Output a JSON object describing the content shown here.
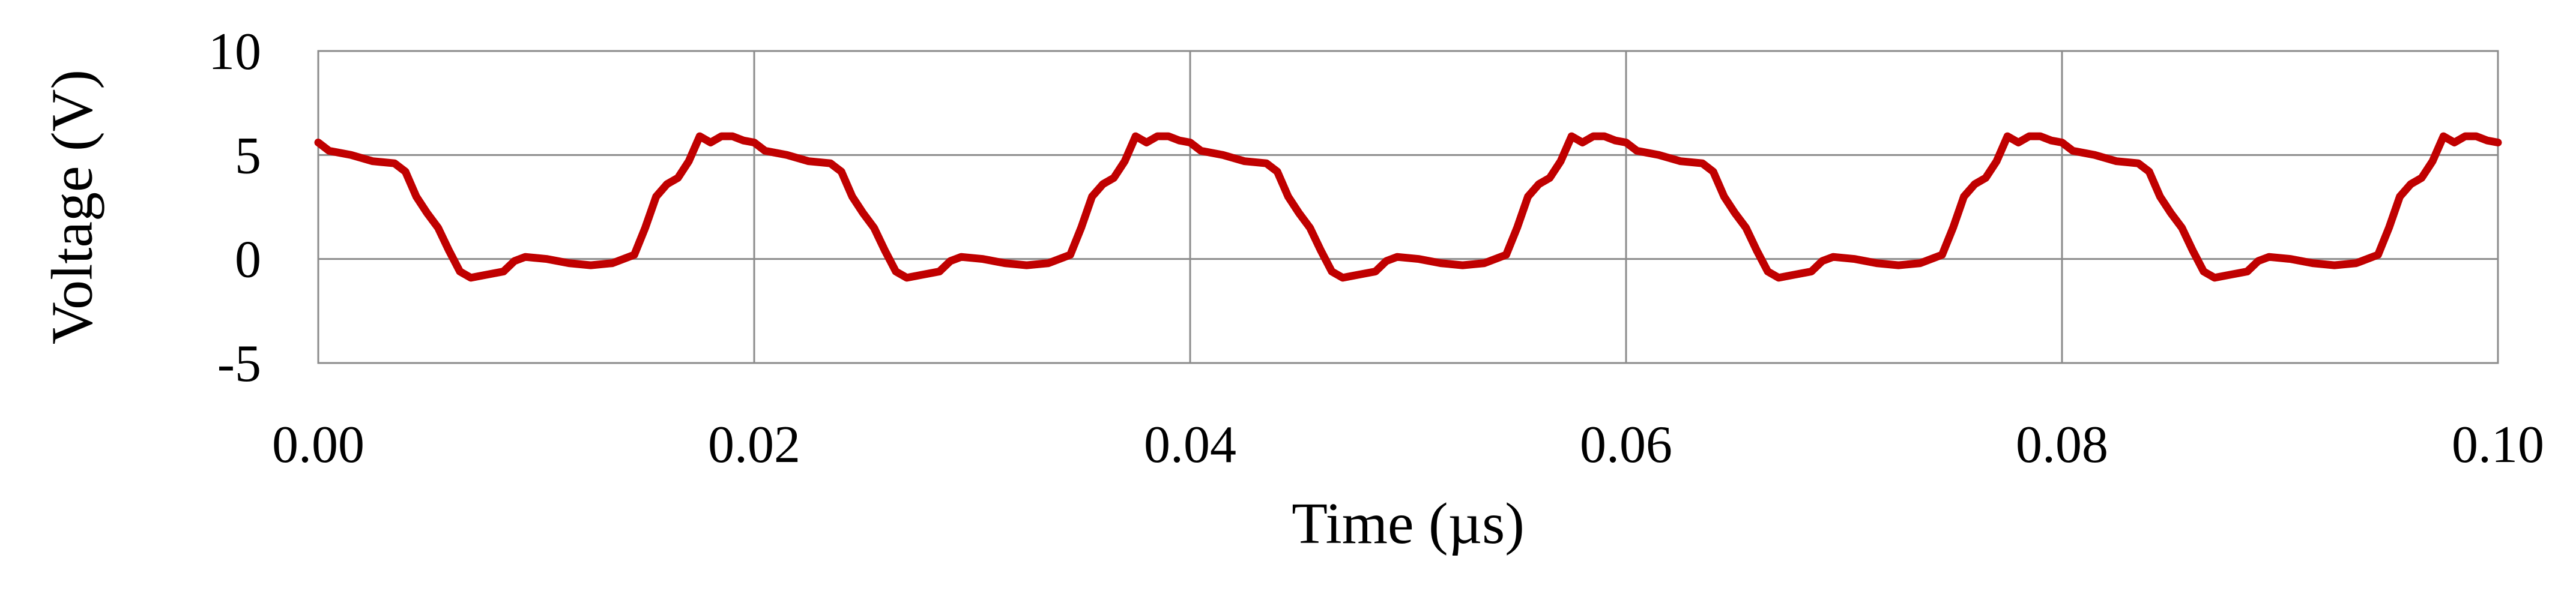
{
  "colors": {
    "series": "#C00000",
    "grid": "#8c8c8c",
    "frame": "#8c8c8c",
    "background": "#ffffff"
  },
  "chart_data": {
    "type": "line",
    "title": "",
    "xlabel": "Time (µs)",
    "ylabel": "Voltage (V)",
    "xlim": [
      0.0,
      0.1
    ],
    "ylim": [
      -5,
      10
    ],
    "x_ticks": [
      0.0,
      0.02,
      0.04,
      0.06,
      0.08,
      0.1
    ],
    "x_tick_labels": [
      "0.00",
      "0.02",
      "0.04",
      "0.06",
      "0.08",
      "0.10"
    ],
    "y_ticks": [
      -5,
      0,
      5,
      10
    ],
    "y_tick_labels": [
      "-5",
      "0",
      "5",
      "10"
    ],
    "grid": true,
    "legend": "none",
    "period": 0.02,
    "series": [
      {
        "color": "#C00000",
        "x": [
          0.0,
          0.0005,
          0.0015,
          0.0025,
          0.0035,
          0.004,
          0.0045,
          0.005,
          0.0055,
          0.006,
          0.0065,
          0.007,
          0.0075,
          0.0085,
          0.009,
          0.0095,
          0.0105,
          0.0115,
          0.0125,
          0.0135,
          0.0145,
          0.015,
          0.0155,
          0.016,
          0.0165,
          0.017,
          0.0175,
          0.018,
          0.0185,
          0.019,
          0.0195,
          0.02,
          0.0205,
          0.0215,
          0.0225,
          0.0235,
          0.024,
          0.0245,
          0.025,
          0.0255,
          0.026,
          0.0265,
          0.027,
          0.0275,
          0.0285,
          0.029,
          0.0295,
          0.0305,
          0.0315,
          0.0325,
          0.0335,
          0.0345,
          0.035,
          0.0355,
          0.036,
          0.0365,
          0.037,
          0.0375,
          0.038,
          0.0385,
          0.039,
          0.0395,
          0.04,
          0.0405,
          0.0415,
          0.0425,
          0.0435,
          0.044,
          0.0445,
          0.045,
          0.0455,
          0.046,
          0.0465,
          0.047,
          0.0475,
          0.0485,
          0.049,
          0.0495,
          0.0505,
          0.0515,
          0.0525,
          0.0535,
          0.0545,
          0.055,
          0.0555,
          0.056,
          0.0565,
          0.057,
          0.0575,
          0.058,
          0.0585,
          0.059,
          0.0595,
          0.06,
          0.0605,
          0.0615,
          0.0625,
          0.0635,
          0.064,
          0.0645,
          0.065,
          0.0655,
          0.066,
          0.0665,
          0.067,
          0.0675,
          0.0685,
          0.069,
          0.0695,
          0.0705,
          0.0715,
          0.0725,
          0.0735,
          0.0745,
          0.075,
          0.0755,
          0.076,
          0.0765,
          0.077,
          0.0775,
          0.078,
          0.0785,
          0.079,
          0.0795,
          0.08,
          0.0805,
          0.0815,
          0.0825,
          0.0835,
          0.084,
          0.0845,
          0.085,
          0.0855,
          0.086,
          0.0865,
          0.087,
          0.0875,
          0.0885,
          0.089,
          0.0895,
          0.0905,
          0.0915,
          0.0925,
          0.0935,
          0.0945,
          0.095,
          0.0955,
          0.096,
          0.0965,
          0.097,
          0.0975,
          0.098,
          0.0985,
          0.099,
          0.0995,
          0.1
        ],
        "y": [
          5.6,
          5.2,
          5.0,
          4.7,
          4.6,
          4.2,
          3.0,
          2.2,
          1.5,
          0.4,
          -0.6,
          -0.9,
          -0.8,
          -0.6,
          -0.1,
          0.1,
          0.0,
          -0.2,
          -0.3,
          -0.2,
          0.2,
          1.5,
          3.0,
          3.6,
          3.9,
          4.7,
          5.9,
          5.6,
          5.9,
          5.9,
          5.7,
          5.6,
          5.2,
          5.0,
          4.7,
          4.6,
          4.2,
          3.0,
          2.2,
          1.5,
          0.4,
          -0.6,
          -0.9,
          -0.8,
          -0.6,
          -0.1,
          0.1,
          0.0,
          -0.2,
          -0.3,
          -0.2,
          0.2,
          1.5,
          3.0,
          3.6,
          3.9,
          4.7,
          5.9,
          5.6,
          5.9,
          5.9,
          5.7,
          5.6,
          5.2,
          5.0,
          4.7,
          4.6,
          4.2,
          3.0,
          2.2,
          1.5,
          0.4,
          -0.6,
          -0.9,
          -0.8,
          -0.6,
          -0.1,
          0.1,
          0.0,
          -0.2,
          -0.3,
          -0.2,
          0.2,
          1.5,
          3.0,
          3.6,
          3.9,
          4.7,
          5.9,
          5.6,
          5.9,
          5.9,
          5.7,
          5.6,
          5.2,
          5.0,
          4.7,
          4.6,
          4.2,
          3.0,
          2.2,
          1.5,
          0.4,
          -0.6,
          -0.9,
          -0.8,
          -0.6,
          -0.1,
          0.1,
          0.0,
          -0.2,
          -0.3,
          -0.2,
          0.2,
          1.5,
          3.0,
          3.6,
          3.9,
          4.7,
          5.9,
          5.6,
          5.9,
          5.9,
          5.7,
          5.6,
          5.2,
          5.0,
          4.7,
          4.6,
          4.2,
          3.0,
          2.2,
          1.5,
          0.4,
          -0.6,
          -0.9,
          -0.8,
          -0.6,
          -0.1,
          0.1,
          0.0,
          -0.2,
          -0.3,
          -0.2,
          0.2,
          1.5,
          3.0,
          3.6,
          3.9,
          4.7,
          5.9,
          5.6,
          5.9,
          5.9,
          5.7,
          5.6
        ]
      }
    ]
  }
}
